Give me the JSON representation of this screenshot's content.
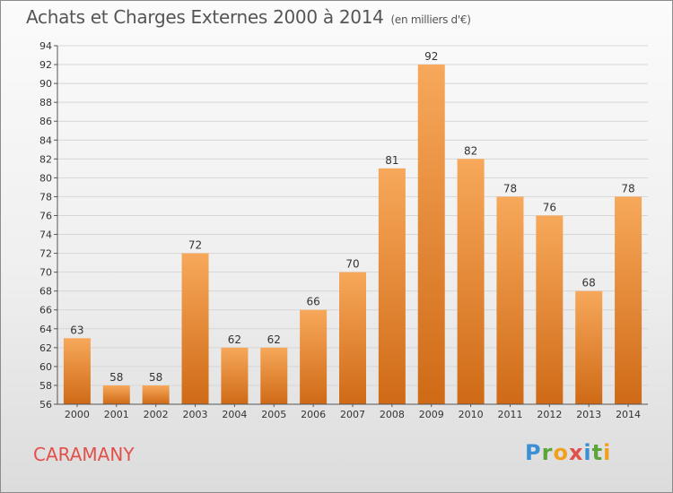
{
  "title": "Achats et Charges Externes 2000 à 2014",
  "subtitle": "(en milliers d'€)",
  "commune": "CARAMANY",
  "brand": {
    "letters": [
      "P",
      "r",
      "o",
      "x",
      "i",
      "t",
      "i"
    ],
    "colors": [
      "#3a8fd6",
      "#5aa63a",
      "#f0a020",
      "#e2504a",
      "#3a8fd6",
      "#5aa63a",
      "#f0a020"
    ]
  },
  "colors": {
    "bar_top": "#f7a85a",
    "bar_bottom": "#cf6a16",
    "grid": "#d6d6d6",
    "commune": "#e2504a"
  },
  "chart_data": {
    "type": "bar",
    "categories": [
      "2000",
      "2001",
      "2002",
      "2003",
      "2004",
      "2005",
      "2006",
      "2007",
      "2008",
      "2009",
      "2010",
      "2011",
      "2012",
      "2013",
      "2014"
    ],
    "values": [
      63,
      58,
      58,
      72,
      62,
      62,
      66,
      70,
      81,
      92,
      82,
      78,
      76,
      68,
      78
    ],
    "title": "Achats et Charges Externes 2000 à 2014",
    "xlabel": "",
    "ylabel": "",
    "ylim": [
      56,
      94
    ],
    "yticks": [
      56,
      58,
      60,
      62,
      64,
      66,
      68,
      70,
      72,
      74,
      76,
      78,
      80,
      82,
      84,
      86,
      88,
      90,
      92,
      94
    ],
    "grid": true,
    "data_labels": true
  }
}
